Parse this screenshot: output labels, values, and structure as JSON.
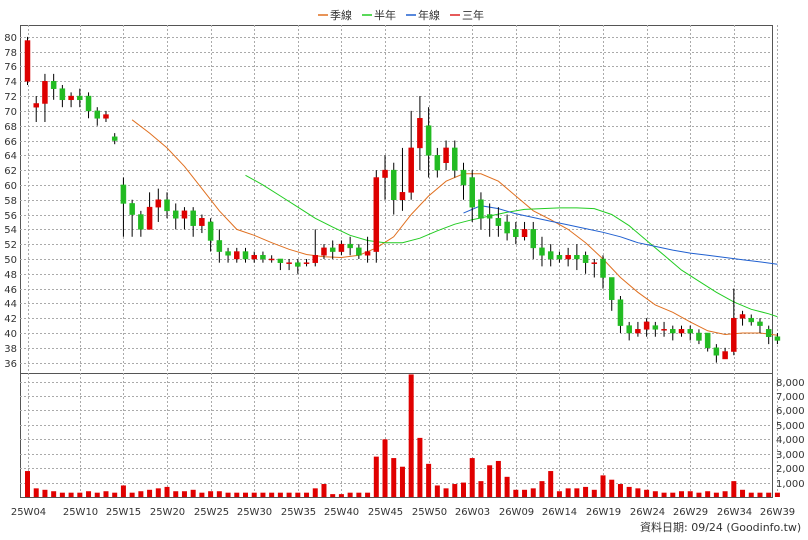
{
  "legend": [
    {
      "label": "季線",
      "color": "#e07020"
    },
    {
      "label": "半年",
      "color": "#22cc22"
    },
    {
      "label": "年線",
      "color": "#2060d0"
    },
    {
      "label": "三年",
      "color": "#dd2222"
    }
  ],
  "footer": "資料日期: 09/24  (Goodinfo.tw)",
  "chart_data": {
    "type": "candlestick",
    "price_axis": {
      "ylim": [
        34.6,
        81.6
      ],
      "ticks": [
        36,
        38,
        40,
        42,
        44,
        46,
        48,
        50,
        52,
        54,
        56,
        58,
        60,
        62,
        64,
        66,
        68,
        70,
        72,
        74,
        76,
        78,
        80
      ]
    },
    "volume_axis": {
      "ylim": [
        0,
        8600
      ],
      "ticks": [
        1000,
        2000,
        3000,
        4000,
        5000,
        6000,
        7000,
        8000
      ],
      "tick_labels": [
        "1,000",
        "2,000",
        "3,000",
        "4,000",
        "5,000",
        "6,000",
        "7,000",
        "8,000"
      ]
    },
    "x_ticks": [
      {
        "i": 0,
        "label": "25W04"
      },
      {
        "i": 6,
        "label": "25W10"
      },
      {
        "i": 11,
        "label": "25W15"
      },
      {
        "i": 16,
        "label": "25W20"
      },
      {
        "i": 21,
        "label": "25W25"
      },
      {
        "i": 26,
        "label": "25W30"
      },
      {
        "i": 31,
        "label": "25W35"
      },
      {
        "i": 36,
        "label": "25W40"
      },
      {
        "i": 41,
        "label": "25W45"
      },
      {
        "i": 46,
        "label": "25W50"
      },
      {
        "i": 51,
        "label": "26W03"
      },
      {
        "i": 56,
        "label": "26W09"
      },
      {
        "i": 61,
        "label": "26W14"
      },
      {
        "i": 66,
        "label": "26W19"
      },
      {
        "i": 71,
        "label": "26W24"
      },
      {
        "i": 76,
        "label": "26W29"
      },
      {
        "i": 81,
        "label": "26W34"
      },
      {
        "i": 86,
        "label": "26W39"
      }
    ],
    "candles": [
      [
        74,
        79.5,
        80,
        73.5
      ],
      [
        70.5,
        71,
        72,
        68.5
      ],
      [
        71,
        74,
        75,
        68.5
      ],
      [
        74,
        73,
        75,
        71.5
      ],
      [
        73,
        71.5,
        73.5,
        70.5
      ],
      [
        71.5,
        72,
        72.5,
        70.5
      ],
      [
        72,
        71.5,
        73,
        70.5
      ],
      [
        72,
        70,
        72.5,
        69
      ],
      [
        70,
        69,
        70.5,
        68
      ],
      [
        69,
        69.5,
        70,
        68.5
      ],
      [
        66.5,
        66,
        67,
        65.5
      ],
      [
        60,
        57.5,
        61,
        53
      ],
      [
        57.5,
        56,
        58,
        53
      ],
      [
        56,
        54,
        56.5,
        53
      ],
      [
        54,
        57,
        59,
        54
      ],
      [
        57,
        58,
        59.5,
        55
      ],
      [
        58,
        56.5,
        59,
        55.5
      ],
      [
        56.5,
        55.5,
        57.5,
        54
      ],
      [
        55.5,
        56.5,
        57,
        54
      ],
      [
        56.5,
        54.5,
        57,
        53
      ],
      [
        54.5,
        55.5,
        56,
        53.5
      ],
      [
        55,
        52.5,
        55.5,
        51
      ],
      [
        52.5,
        51,
        54,
        49.5
      ],
      [
        51,
        50.5,
        51.5,
        49.5
      ],
      [
        50,
        51,
        51.5,
        49.5
      ],
      [
        51,
        50,
        51.5,
        49.5
      ],
      [
        50,
        50.5,
        51,
        49.5
      ],
      [
        50.5,
        50,
        51,
        49.5
      ],
      [
        50,
        50,
        50.5,
        49.5
      ],
      [
        50,
        49.5,
        50,
        48.5
      ],
      [
        49.5,
        49.5,
        50,
        48.5
      ],
      [
        49.5,
        49,
        50,
        48
      ],
      [
        49.5,
        49.5,
        50,
        49
      ],
      [
        49.5,
        50.5,
        54,
        49
      ],
      [
        50.5,
        51.5,
        52,
        50
      ],
      [
        51.5,
        51,
        52.5,
        50
      ],
      [
        51,
        52,
        52.5,
        50.5
      ],
      [
        52,
        51.5,
        53,
        50.5
      ],
      [
        51.5,
        50.5,
        52,
        50
      ],
      [
        50.5,
        51,
        53,
        49.5
      ],
      [
        51,
        61,
        62,
        49.5
      ],
      [
        61,
        62,
        64,
        58
      ],
      [
        62,
        58,
        63,
        56
      ],
      [
        58,
        59,
        65,
        56.5
      ],
      [
        59,
        65,
        70,
        58
      ],
      [
        65,
        69,
        72,
        62
      ],
      [
        68,
        64,
        70.5,
        61
      ],
      [
        64,
        62,
        65,
        61
      ],
      [
        63,
        65,
        66,
        62
      ],
      [
        65,
        62,
        66,
        61
      ],
      [
        62,
        60,
        63,
        58
      ],
      [
        61,
        57,
        62,
        55
      ],
      [
        58,
        55.5,
        59,
        54
      ],
      [
        56,
        55.5,
        57.5,
        53
      ],
      [
        55.5,
        54.5,
        57,
        53
      ],
      [
        55,
        53.5,
        56,
        52.5
      ],
      [
        54,
        53,
        55,
        52
      ],
      [
        53,
        54,
        55,
        52.5
      ],
      [
        54,
        51.5,
        55,
        50
      ],
      [
        51.5,
        50.5,
        53,
        49
      ],
      [
        51,
        50,
        52,
        49
      ],
      [
        50.5,
        50,
        51,
        49.5
      ],
      [
        50,
        50.5,
        51.5,
        49
      ],
      [
        50.5,
        50,
        52,
        48.5
      ],
      [
        50.5,
        49.5,
        51,
        48
      ],
      [
        49.5,
        49.5,
        50,
        47.5
      ],
      [
        50,
        47.5,
        50.5,
        46
      ],
      [
        47.5,
        44.5,
        47.5,
        43
      ],
      [
        44.5,
        41,
        45,
        40
      ],
      [
        41,
        40,
        41.5,
        39
      ],
      [
        40,
        40.5,
        41.5,
        39.5
      ],
      [
        40.5,
        41.5,
        42,
        39.5
      ],
      [
        41,
        40.5,
        41.5,
        39.5
      ],
      [
        40.5,
        40.5,
        41.5,
        39.5
      ],
      [
        40.5,
        40,
        41,
        39
      ],
      [
        40,
        40.5,
        41,
        39.5
      ],
      [
        40.5,
        40,
        41,
        39
      ],
      [
        40,
        39,
        40.5,
        38.5
      ],
      [
        40,
        38,
        40,
        37.5
      ],
      [
        38,
        37,
        38.5,
        36
      ],
      [
        36.5,
        37.5,
        38,
        36.5
      ],
      [
        37.5,
        42,
        46,
        37
      ],
      [
        42,
        42.5,
        43,
        41
      ],
      [
        42,
        41.5,
        42.5,
        41
      ],
      [
        41.5,
        41,
        42,
        40
      ],
      [
        40.5,
        39.5,
        41,
        38.5
      ],
      [
        39.5,
        39,
        40,
        38.5
      ]
    ],
    "volumes": [
      1800,
      600,
      500,
      400,
      300,
      300,
      300,
      400,
      300,
      400,
      300,
      800,
      300,
      400,
      500,
      600,
      700,
      400,
      400,
      500,
      300,
      400,
      400,
      300,
      300,
      300,
      300,
      300,
      300,
      300,
      300,
      300,
      300,
      600,
      900,
      200,
      200,
      300,
      300,
      300,
      2800,
      4000,
      2700,
      2100,
      8500,
      4100,
      2300,
      800,
      600,
      900,
      1000,
      2700,
      1100,
      2200,
      2500,
      1400,
      500,
      500,
      600,
      1100,
      1800,
      400,
      600,
      600,
      700,
      500,
      1500,
      1200,
      900,
      700,
      600,
      500,
      400,
      300,
      300,
      400,
      400,
      300,
      400,
      300,
      400,
      1100,
      500,
      300,
      300,
      300,
      300
    ],
    "series": [
      {
        "name": "季線",
        "color": "#e07020",
        "points": [
          [
            12,
            68.8
          ],
          [
            14,
            67
          ],
          [
            16,
            65
          ],
          [
            18,
            62.5
          ],
          [
            20,
            59.5
          ],
          [
            22,
            56.5
          ],
          [
            24,
            54
          ],
          [
            26,
            53.2
          ],
          [
            28,
            52.2
          ],
          [
            30,
            51.3
          ],
          [
            32,
            50.6
          ],
          [
            34,
            50.3
          ],
          [
            36,
            50.2
          ],
          [
            38,
            50.5
          ],
          [
            40,
            51.5
          ],
          [
            42,
            53
          ],
          [
            44,
            56
          ],
          [
            46,
            58.5
          ],
          [
            48,
            60.5
          ],
          [
            50,
            61.5
          ],
          [
            52,
            61.5
          ],
          [
            54,
            60.5
          ],
          [
            56,
            58.5
          ],
          [
            58,
            56.5
          ],
          [
            60,
            55.3
          ],
          [
            62,
            54
          ],
          [
            64,
            52.2
          ],
          [
            66,
            50
          ],
          [
            68,
            47.5
          ],
          [
            70,
            45.5
          ],
          [
            72,
            43.8
          ],
          [
            74,
            42.8
          ],
          [
            76,
            41.5
          ],
          [
            78,
            40.3
          ],
          [
            80,
            39.8
          ],
          [
            82,
            40
          ],
          [
            84,
            40
          ],
          [
            86,
            39.7
          ]
        ]
      },
      {
        "name": "半年",
        "color": "#22cc22",
        "points": [
          [
            25,
            61.3
          ],
          [
            27,
            60
          ],
          [
            29,
            58.5
          ],
          [
            31,
            57
          ],
          [
            33,
            55.5
          ],
          [
            35,
            54.3
          ],
          [
            37,
            53.2
          ],
          [
            39,
            52.5
          ],
          [
            41,
            52.2
          ],
          [
            43,
            52.2
          ],
          [
            45,
            52.8
          ],
          [
            47,
            53.8
          ],
          [
            49,
            54.7
          ],
          [
            51,
            55.3
          ],
          [
            53,
            55.8
          ],
          [
            55,
            56.3
          ],
          [
            57,
            56.7
          ],
          [
            59,
            56.8
          ],
          [
            61,
            56.9
          ],
          [
            63,
            56.9
          ],
          [
            65,
            56.8
          ],
          [
            67,
            56
          ],
          [
            69,
            54.5
          ],
          [
            71,
            52.5
          ],
          [
            73,
            50.5
          ],
          [
            75,
            48.5
          ],
          [
            77,
            47
          ],
          [
            79,
            45.5
          ],
          [
            81,
            44.2
          ],
          [
            83,
            43.2
          ],
          [
            85,
            42.6
          ],
          [
            86,
            42.2
          ]
        ]
      },
      {
        "name": "年線",
        "color": "#2060d0",
        "points": [
          [
            50,
            56.2
          ],
          [
            52,
            57.2
          ],
          [
            54,
            56.8
          ],
          [
            56,
            56.1
          ],
          [
            58,
            55.6
          ],
          [
            60,
            55.1
          ],
          [
            62,
            54.6
          ],
          [
            64,
            54.1
          ],
          [
            66,
            53.6
          ],
          [
            68,
            53
          ],
          [
            70,
            52.2
          ],
          [
            72,
            51.7
          ],
          [
            74,
            51.2
          ],
          [
            76,
            50.8
          ],
          [
            78,
            50.5
          ],
          [
            80,
            50.2
          ],
          [
            82,
            49.9
          ],
          [
            84,
            49.6
          ],
          [
            86,
            49.3
          ]
        ]
      }
    ]
  }
}
